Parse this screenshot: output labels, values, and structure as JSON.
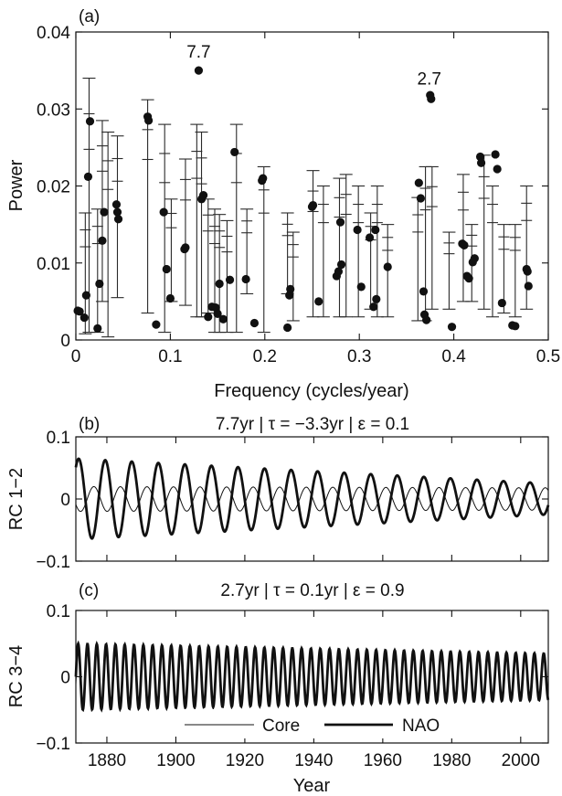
{
  "chart_data": [
    {
      "panel": "(a)",
      "type": "scatter",
      "xlabel": "Frequency (cycles/year)",
      "ylabel": "Power",
      "xlim": [
        0,
        0.5
      ],
      "ylim": [
        0,
        0.04
      ],
      "xticks": [
        "0",
        "0.1",
        "0.2",
        "0.3",
        "0.4",
        "0.5"
      ],
      "yticks": [
        "0",
        "0.01",
        "0.02",
        "0.03",
        "0.04"
      ],
      "annotations": [
        {
          "text": "7.7",
          "x": 0.13,
          "y": 0.035
        },
        {
          "text": "2.7",
          "x": 0.374,
          "y": 0.0315
        }
      ],
      "points": [
        {
          "x": 0.002,
          "y": 0.0038
        },
        {
          "x": 0.004,
          "y": 0.0037
        },
        {
          "x": 0.009,
          "y": 0.0029
        },
        {
          "x": 0.011,
          "y": 0.0058
        },
        {
          "x": 0.013,
          "y": 0.0212
        },
        {
          "x": 0.015,
          "y": 0.0284
        },
        {
          "x": 0.023,
          "y": 0.0015
        },
        {
          "x": 0.025,
          "y": 0.0073
        },
        {
          "x": 0.028,
          "y": 0.0129
        },
        {
          "x": 0.03,
          "y": 0.0166
        },
        {
          "x": 0.043,
          "y": 0.0176
        },
        {
          "x": 0.044,
          "y": 0.0166
        },
        {
          "x": 0.045,
          "y": 0.0157
        },
        {
          "x": 0.076,
          "y": 0.029
        },
        {
          "x": 0.077,
          "y": 0.0285
        },
        {
          "x": 0.085,
          "y": 0.002
        },
        {
          "x": 0.093,
          "y": 0.0166
        },
        {
          "x": 0.096,
          "y": 0.0092
        },
        {
          "x": 0.1,
          "y": 0.0054
        },
        {
          "x": 0.115,
          "y": 0.0118
        },
        {
          "x": 0.116,
          "y": 0.012
        },
        {
          "x": 0.13,
          "y": 0.035
        },
        {
          "x": 0.133,
          "y": 0.0183
        },
        {
          "x": 0.135,
          "y": 0.0188
        },
        {
          "x": 0.14,
          "y": 0.003
        },
        {
          "x": 0.144,
          "y": 0.0043
        },
        {
          "x": 0.148,
          "y": 0.0042
        },
        {
          "x": 0.15,
          "y": 0.0034
        },
        {
          "x": 0.152,
          "y": 0.0073
        },
        {
          "x": 0.156,
          "y": 0.0027
        },
        {
          "x": 0.163,
          "y": 0.0078
        },
        {
          "x": 0.168,
          "y": 0.0244
        },
        {
          "x": 0.18,
          "y": 0.0079
        },
        {
          "x": 0.189,
          "y": 0.0022
        },
        {
          "x": 0.197,
          "y": 0.0207
        },
        {
          "x": 0.198,
          "y": 0.021
        },
        {
          "x": 0.224,
          "y": 0.0016
        },
        {
          "x": 0.226,
          "y": 0.0058
        },
        {
          "x": 0.227,
          "y": 0.0066
        },
        {
          "x": 0.25,
          "y": 0.0173
        },
        {
          "x": 0.251,
          "y": 0.0175
        },
        {
          "x": 0.257,
          "y": 0.005
        },
        {
          "x": 0.276,
          "y": 0.0083
        },
        {
          "x": 0.278,
          "y": 0.0089
        },
        {
          "x": 0.28,
          "y": 0.0153
        },
        {
          "x": 0.281,
          "y": 0.0098
        },
        {
          "x": 0.298,
          "y": 0.0143
        },
        {
          "x": 0.302,
          "y": 0.0069
        },
        {
          "x": 0.311,
          "y": 0.0133
        },
        {
          "x": 0.315,
          "y": 0.0043
        },
        {
          "x": 0.318,
          "y": 0.0053
        },
        {
          "x": 0.317,
          "y": 0.0143
        },
        {
          "x": 0.33,
          "y": 0.0095
        },
        {
          "x": 0.363,
          "y": 0.0204
        },
        {
          "x": 0.365,
          "y": 0.0184
        },
        {
          "x": 0.368,
          "y": 0.0063
        },
        {
          "x": 0.369,
          "y": 0.0033
        },
        {
          "x": 0.371,
          "y": 0.0026
        },
        {
          "x": 0.375,
          "y": 0.0318
        },
        {
          "x": 0.376,
          "y": 0.0313
        },
        {
          "x": 0.398,
          "y": 0.0017
        },
        {
          "x": 0.409,
          "y": 0.0125
        },
        {
          "x": 0.411,
          "y": 0.0123
        },
        {
          "x": 0.414,
          "y": 0.0083
        },
        {
          "x": 0.416,
          "y": 0.008
        },
        {
          "x": 0.42,
          "y": 0.0101
        },
        {
          "x": 0.422,
          "y": 0.0106
        },
        {
          "x": 0.428,
          "y": 0.0238
        },
        {
          "x": 0.429,
          "y": 0.023
        },
        {
          "x": 0.444,
          "y": 0.0241
        },
        {
          "x": 0.446,
          "y": 0.0222
        },
        {
          "x": 0.451,
          "y": 0.0048
        },
        {
          "x": 0.462,
          "y": 0.0019
        },
        {
          "x": 0.465,
          "y": 0.0018
        },
        {
          "x": 0.477,
          "y": 0.0092
        },
        {
          "x": 0.478,
          "y": 0.0089
        },
        {
          "x": 0.479,
          "y": 0.007
        }
      ],
      "error_bars": [
        {
          "x": 0.01,
          "lo": 0.0008,
          "hi": 0.0165
        },
        {
          "x": 0.014,
          "lo": 0.001,
          "hi": 0.034
        },
        {
          "x": 0.023,
          "lo": 0.001,
          "hi": 0.017
        },
        {
          "x": 0.028,
          "lo": 0.005,
          "hi": 0.0285
        },
        {
          "x": 0.034,
          "lo": 0.0004,
          "hi": 0.027
        },
        {
          "x": 0.044,
          "lo": 0.0055,
          "hi": 0.0265
        },
        {
          "x": 0.076,
          "lo": 0.0035,
          "hi": 0.0312
        },
        {
          "x": 0.094,
          "lo": 0.001,
          "hi": 0.028
        },
        {
          "x": 0.101,
          "lo": 0.005,
          "hi": 0.0183
        },
        {
          "x": 0.116,
          "lo": 0.0045,
          "hi": 0.0235
        },
        {
          "x": 0.128,
          "lo": 0.003,
          "hi": 0.028
        },
        {
          "x": 0.133,
          "lo": 0.003,
          "hi": 0.027
        },
        {
          "x": 0.14,
          "lo": 0.0035,
          "hi": 0.0183
        },
        {
          "x": 0.147,
          "lo": 0.001,
          "hi": 0.017
        },
        {
          "x": 0.152,
          "lo": 0.001,
          "hi": 0.0163
        },
        {
          "x": 0.16,
          "lo": 0.001,
          "hi": 0.0155
        },
        {
          "x": 0.17,
          "lo": 0.001,
          "hi": 0.028
        },
        {
          "x": 0.181,
          "lo": 0.006,
          "hi": 0.017
        },
        {
          "x": 0.199,
          "lo": 0.001,
          "hi": 0.0225
        },
        {
          "x": 0.224,
          "lo": 0.006,
          "hi": 0.0165
        },
        {
          "x": 0.23,
          "lo": 0.0025,
          "hi": 0.014
        },
        {
          "x": 0.251,
          "lo": 0.003,
          "hi": 0.022
        },
        {
          "x": 0.262,
          "lo": 0.003,
          "hi": 0.02
        },
        {
          "x": 0.279,
          "lo": 0.003,
          "hi": 0.021
        },
        {
          "x": 0.286,
          "lo": 0.003,
          "hi": 0.0215
        },
        {
          "x": 0.299,
          "lo": 0.003,
          "hi": 0.02
        },
        {
          "x": 0.312,
          "lo": 0.004,
          "hi": 0.0165
        },
        {
          "x": 0.319,
          "lo": 0.003,
          "hi": 0.02
        },
        {
          "x": 0.33,
          "lo": 0.003,
          "hi": 0.015
        },
        {
          "x": 0.362,
          "lo": 0.0025,
          "hi": 0.0185
        },
        {
          "x": 0.37,
          "lo": 0.0025,
          "hi": 0.0225
        },
        {
          "x": 0.377,
          "lo": 0.004,
          "hi": 0.0225
        },
        {
          "x": 0.395,
          "lo": 0.004,
          "hi": 0.014
        },
        {
          "x": 0.41,
          "lo": 0.005,
          "hi": 0.0215
        },
        {
          "x": 0.419,
          "lo": 0.005,
          "hi": 0.015
        },
        {
          "x": 0.432,
          "lo": 0.004,
          "hi": 0.024
        },
        {
          "x": 0.441,
          "lo": 0.003,
          "hi": 0.02
        },
        {
          "x": 0.453,
          "lo": 0.0035,
          "hi": 0.015
        },
        {
          "x": 0.465,
          "lo": 0.003,
          "hi": 0.015
        },
        {
          "x": 0.477,
          "lo": 0.004,
          "hi": 0.02
        }
      ]
    },
    {
      "panel": "(b)",
      "type": "line",
      "title": "7.7yr | τ = −3.3yr | ε = 0.1",
      "ylabel": "RC 1−2",
      "xlim": [
        1871,
        2008
      ],
      "ylim": [
        -0.1,
        0.1
      ],
      "yticks": [
        "0.1",
        "0",
        "−0.1"
      ],
      "series": [
        {
          "name": "Core",
          "period": 7.7,
          "amp_start": 0.02,
          "amp_end": 0.018,
          "phase": 0.9,
          "lag_years": -3.3,
          "weight": "thin"
        },
        {
          "name": "NAO",
          "period": 7.7,
          "amp_start": 0.065,
          "amp_end": 0.025,
          "phase": 0.9,
          "lag_years": 0,
          "weight": "thick"
        }
      ]
    },
    {
      "panel": "(c)",
      "type": "line",
      "title": "2.7yr | τ = 0.1yr | ε = 0.9",
      "ylabel": "RC 3−4",
      "xlabel": "Year",
      "xlim": [
        1871,
        2008
      ],
      "ylim": [
        -0.1,
        0.1
      ],
      "yticks": [
        "0.1",
        "0",
        "−0.1"
      ],
      "xticks": [
        "1880",
        "1900",
        "1920",
        "1940",
        "1960",
        "1980",
        "2000"
      ],
      "legend": {
        "position": "bottom-center",
        "entries": [
          "Core",
          "NAO"
        ]
      },
      "series": [
        {
          "name": "Core",
          "period": 2.7,
          "amp_start": 0.05,
          "amp_end": 0.035,
          "phase": 0.0,
          "lag_years": 0.1,
          "weight": "thin"
        },
        {
          "name": "NAO",
          "period": 2.7,
          "amp_start": 0.05,
          "amp_end": 0.035,
          "phase": 0.0,
          "lag_years": 0,
          "weight": "thick"
        }
      ]
    }
  ]
}
